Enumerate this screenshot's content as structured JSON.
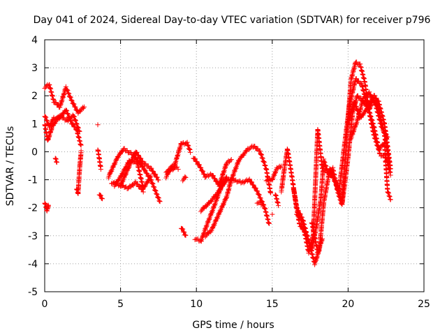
{
  "chart_data": {
    "type": "scatter",
    "title": "Day 041 of 2024, Sidereal Day-to-day VTEC variation (SDTVAR) for receiver p796",
    "xlabel": "GPS time / hours",
    "ylabel": "SDTVAR / TECUs",
    "xlim": [
      0,
      25
    ],
    "ylim": [
      -5,
      4
    ],
    "xticks": [
      "0",
      "5",
      "10",
      "15",
      "20",
      "25"
    ],
    "yticks": [
      "4",
      "3",
      "2",
      "1",
      "0",
      "-1",
      "-2",
      "-3",
      "-4",
      "-5"
    ],
    "grid": true,
    "marker": "+",
    "color": "#ff0000",
    "series": [
      {
        "name": "p796",
        "tracks": [
          [
            [
              0.0,
              2.3
            ],
            [
              0.3,
              2.4
            ],
            [
              0.6,
              1.8
            ],
            [
              1.0,
              1.6
            ],
            [
              1.4,
              2.3
            ],
            [
              1.8,
              1.8
            ],
            [
              2.2,
              1.4
            ],
            [
              2.6,
              1.6
            ]
          ],
          [
            [
              0.0,
              1.3
            ],
            [
              0.3,
              0.9
            ],
            [
              0.6,
              1.2
            ],
            [
              1.0,
              1.2
            ],
            [
              1.4,
              1.5
            ],
            [
              1.8,
              1.0
            ],
            [
              2.1,
              0.8
            ],
            [
              2.4,
              0.2
            ]
          ],
          [
            [
              0.0,
              1.0
            ],
            [
              0.2,
              0.4
            ],
            [
              0.5,
              0.9
            ],
            [
              1.0,
              1.3
            ],
            [
              1.5,
              1.1
            ],
            [
              1.9,
              1.3
            ],
            [
              2.3,
              0.7
            ]
          ],
          [
            [
              0.7,
              -0.2
            ],
            [
              0.8,
              -0.4
            ]
          ],
          [
            [
              0.0,
              -1.8
            ],
            [
              0.15,
              -2.1
            ],
            [
              0.25,
              -1.9
            ]
          ],
          [
            [
              2.1,
              -1.3
            ],
            [
              2.2,
              -1.5
            ],
            [
              2.3,
              -0.6
            ],
            [
              2.4,
              0.0
            ]
          ],
          [
            [
              3.5,
              1.0
            ]
          ],
          [
            [
              3.5,
              0.1
            ],
            [
              3.7,
              -0.6
            ]
          ],
          [
            [
              3.6,
              -1.5
            ],
            [
              3.8,
              -1.7
            ]
          ],
          [
            [
              4.2,
              -0.9
            ],
            [
              4.8,
              -0.2
            ],
            [
              5.2,
              0.1
            ],
            [
              5.8,
              -0.1
            ],
            [
              6.4,
              -0.5
            ],
            [
              7.0,
              -1.0
            ],
            [
              7.6,
              -1.8
            ]
          ],
          [
            [
              4.4,
              -1.1
            ],
            [
              5.0,
              -1.2
            ],
            [
              5.5,
              -0.6
            ],
            [
              6.0,
              0.0
            ],
            [
              6.5,
              -0.4
            ],
            [
              7.0,
              -0.6
            ],
            [
              7.5,
              -1.0
            ]
          ],
          [
            [
              4.6,
              -1.2
            ],
            [
              5.0,
              -0.9
            ],
            [
              5.6,
              -0.3
            ],
            [
              6.1,
              -0.4
            ],
            [
              6.5,
              -1.3
            ],
            [
              7.0,
              -0.9
            ]
          ],
          [
            [
              5.0,
              -1.2
            ],
            [
              5.5,
              -1.3
            ],
            [
              6.0,
              -1.1
            ],
            [
              6.5,
              -1.4
            ]
          ],
          [
            [
              8.0,
              -0.7
            ],
            [
              8.5,
              -0.6
            ],
            [
              9.0,
              0.3
            ],
            [
              9.4,
              0.3
            ],
            [
              9.6,
              0.0
            ]
          ],
          [
            [
              8.0,
              -0.9
            ],
            [
              8.4,
              -0.5
            ],
            [
              8.8,
              -0.6
            ]
          ],
          [
            [
              9.0,
              -2.7
            ],
            [
              9.3,
              -3.0
            ]
          ],
          [
            [
              9.1,
              -1.0
            ],
            [
              9.3,
              -0.9
            ]
          ],
          [
            [
              9.8,
              -0.2
            ],
            [
              10.2,
              -0.5
            ],
            [
              10.6,
              -0.9
            ],
            [
              11.0,
              -0.8
            ],
            [
              11.5,
              -1.2
            ],
            [
              11.8,
              -1.0
            ]
          ],
          [
            [
              9.9,
              -3.1
            ],
            [
              10.3,
              -3.2
            ],
            [
              10.7,
              -2.6
            ],
            [
              11.2,
              -1.9
            ],
            [
              11.6,
              -1.3
            ],
            [
              12.0,
              -1.0
            ],
            [
              12.4,
              -1.0
            ],
            [
              13.0,
              -1.1
            ],
            [
              13.5,
              -1.0
            ],
            [
              14.0,
              -1.4
            ],
            [
              14.5,
              -2.0
            ],
            [
              14.8,
              -2.6
            ]
          ],
          [
            [
              10.3,
              -2.1
            ],
            [
              10.9,
              -1.8
            ],
            [
              11.5,
              -1.4
            ],
            [
              12.0,
              -0.9
            ]
          ],
          [
            [
              10.6,
              -3.0
            ],
            [
              11.0,
              -2.8
            ],
            [
              11.5,
              -2.2
            ],
            [
              12.0,
              -1.6
            ],
            [
              12.3,
              -1.0
            ],
            [
              12.8,
              -0.3
            ],
            [
              13.4,
              0.1
            ],
            [
              13.8,
              0.2
            ],
            [
              14.2,
              0.0
            ],
            [
              14.6,
              -0.6
            ],
            [
              14.9,
              -1.5
            ]
          ],
          [
            [
              11.5,
              -1.2
            ],
            [
              12.0,
              -0.4
            ],
            [
              12.3,
              -0.3
            ]
          ],
          [
            [
              14.0,
              -1.8
            ],
            [
              14.4,
              -1.9
            ]
          ],
          [
            [
              15.0,
              -2.2
            ]
          ],
          [
            [
              14.6,
              -1.0
            ],
            [
              15.0,
              -1.0
            ],
            [
              15.3,
              -0.6
            ],
            [
              15.6,
              -0.5
            ]
          ],
          [
            [
              15.2,
              -1.5
            ],
            [
              15.4,
              -1.9
            ]
          ],
          [
            [
              15.6,
              -1.4
            ],
            [
              15.8,
              -0.6
            ],
            [
              16.0,
              0.1
            ],
            [
              16.3,
              -0.9
            ],
            [
              16.6,
              -2.0
            ],
            [
              17.0,
              -2.4
            ],
            [
              17.4,
              -3.2
            ],
            [
              17.8,
              -4.0
            ],
            [
              18.1,
              -3.5
            ],
            [
              18.4,
              -1.8
            ],
            [
              18.8,
              -0.6
            ],
            [
              19.2,
              -1.1
            ],
            [
              19.6,
              -1.8
            ],
            [
              19.8,
              -0.4
            ],
            [
              20.0,
              1.2
            ],
            [
              20.2,
              2.6
            ],
            [
              20.5,
              3.2
            ],
            [
              20.8,
              3.1
            ],
            [
              21.1,
              2.5
            ],
            [
              21.4,
              1.4
            ],
            [
              21.7,
              0.6
            ],
            [
              22.0,
              0.1
            ],
            [
              22.4,
              0.3
            ],
            [
              22.6,
              -1.4
            ],
            [
              22.8,
              -1.7
            ]
          ],
          [
            [
              16.4,
              -1.3
            ],
            [
              16.8,
              -2.6
            ],
            [
              17.2,
              -2.9
            ],
            [
              17.6,
              -3.5
            ],
            [
              17.9,
              -2.7
            ],
            [
              18.2,
              -1.7
            ],
            [
              18.4,
              -0.3
            ],
            [
              18.7,
              -0.8
            ],
            [
              19.0,
              -0.6
            ],
            [
              19.3,
              -1.4
            ],
            [
              19.6,
              -1.9
            ],
            [
              20.0,
              -0.2
            ],
            [
              20.3,
              1.4
            ],
            [
              20.6,
              2.0
            ],
            [
              21.0,
              1.8
            ],
            [
              21.4,
              1.5
            ],
            [
              21.7,
              2.0
            ],
            [
              22.0,
              1.8
            ],
            [
              22.4,
              1.0
            ],
            [
              22.8,
              -0.6
            ]
          ],
          [
            [
              16.6,
              -2.2
            ],
            [
              17.0,
              -2.5
            ],
            [
              17.4,
              -3.6
            ],
            [
              17.7,
              -3.0
            ],
            [
              18.0,
              0.8
            ],
            [
              18.3,
              -0.6
            ],
            [
              18.6,
              -0.7
            ],
            [
              19.0,
              -0.9
            ],
            [
              19.4,
              -1.4
            ],
            [
              19.8,
              0.4
            ],
            [
              20.1,
              1.7
            ],
            [
              20.5,
              2.6
            ],
            [
              20.9,
              2.4
            ],
            [
              21.3,
              1.6
            ],
            [
              21.7,
              0.9
            ],
            [
              22.1,
              -0.1
            ],
            [
              22.5,
              -0.2
            ],
            [
              22.8,
              -0.8
            ]
          ],
          [
            [
              17.6,
              -2.5
            ],
            [
              18.0,
              -3.6
            ],
            [
              18.3,
              -3.1
            ]
          ],
          [
            [
              20.0,
              1.0
            ],
            [
              20.4,
              1.8
            ],
            [
              20.8,
              1.2
            ],
            [
              21.2,
              1.5
            ],
            [
              21.6,
              1.9
            ],
            [
              22.0,
              1.6
            ],
            [
              22.4,
              0.6
            ],
            [
              22.7,
              -0.4
            ]
          ],
          [
            [
              20.2,
              0.5
            ],
            [
              20.6,
              1.1
            ],
            [
              21.0,
              1.9
            ],
            [
              21.4,
              2.1
            ],
            [
              21.8,
              1.7
            ],
            [
              22.2,
              0.9
            ],
            [
              22.6,
              0.5
            ]
          ]
        ]
      }
    ]
  }
}
